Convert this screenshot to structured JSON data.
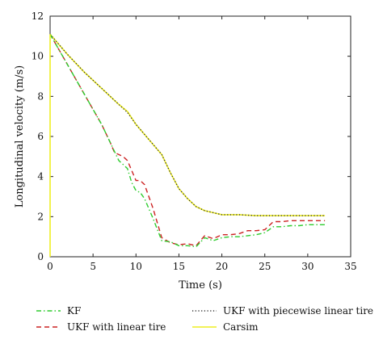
{
  "chart_data": {
    "type": "line",
    "xlabel": "Time (s)",
    "ylabel": "Longitudinal velocity (m/s)",
    "xlim": [
      0,
      35
    ],
    "ylim": [
      0,
      12
    ],
    "xticks": [
      0,
      5,
      10,
      15,
      20,
      25,
      30,
      35
    ],
    "yticks": [
      0,
      2,
      4,
      6,
      8,
      10,
      12
    ],
    "grid": false,
    "legend_placement": "below",
    "series": [
      {
        "name": "KF",
        "color": "#2ecc2e",
        "style": "dash-dot",
        "points": [
          [
            0,
            11.1
          ],
          [
            2,
            9.6
          ],
          [
            4,
            8.1
          ],
          [
            6,
            6.6
          ],
          [
            7,
            5.7
          ],
          [
            8,
            4.8
          ],
          [
            9,
            4.4
          ],
          [
            9.5,
            3.7
          ],
          [
            10,
            3.3
          ],
          [
            10.5,
            3.2
          ],
          [
            11,
            2.9
          ],
          [
            12,
            1.9
          ],
          [
            13,
            0.8
          ],
          [
            14,
            0.75
          ],
          [
            15,
            0.55
          ],
          [
            16,
            0.55
          ],
          [
            17,
            0.5
          ],
          [
            18,
            0.95
          ],
          [
            19,
            0.8
          ],
          [
            20,
            0.95
          ],
          [
            21,
            1.0
          ],
          [
            22,
            1.0
          ],
          [
            23,
            1.05
          ],
          [
            24,
            1.1
          ],
          [
            25,
            1.2
          ],
          [
            26,
            1.5
          ],
          [
            27,
            1.5
          ],
          [
            28,
            1.55
          ],
          [
            29,
            1.55
          ],
          [
            30,
            1.6
          ],
          [
            31,
            1.6
          ],
          [
            32,
            1.6
          ]
        ]
      },
      {
        "name": "UKF with linear tire",
        "color": "#cc2222",
        "style": "dashed",
        "points": [
          [
            0,
            11.1
          ],
          [
            2,
            9.6
          ],
          [
            4,
            8.1
          ],
          [
            6,
            6.6
          ],
          [
            7,
            5.7
          ],
          [
            7.5,
            5.2
          ],
          [
            8.5,
            5.0
          ],
          [
            9,
            4.8
          ],
          [
            10,
            3.8
          ],
          [
            10.5,
            3.8
          ],
          [
            11,
            3.6
          ],
          [
            12,
            2.4
          ],
          [
            13,
            0.95
          ],
          [
            14,
            0.7
          ],
          [
            15,
            0.6
          ],
          [
            16,
            0.65
          ],
          [
            17,
            0.55
          ],
          [
            18,
            1.05
          ],
          [
            19,
            0.9
          ],
          [
            20,
            1.1
          ],
          [
            21,
            1.1
          ],
          [
            22,
            1.15
          ],
          [
            23,
            1.3
          ],
          [
            24,
            1.3
          ],
          [
            25,
            1.35
          ],
          [
            26,
            1.75
          ],
          [
            27,
            1.75
          ],
          [
            28,
            1.8
          ],
          [
            29,
            1.8
          ],
          [
            30,
            1.8
          ],
          [
            31,
            1.8
          ],
          [
            32,
            1.8
          ]
        ]
      },
      {
        "name": "UKF with piecewise linear tire",
        "color": "#333333",
        "style": "dotted",
        "points": [
          [
            0,
            11.1
          ],
          [
            2,
            10.1
          ],
          [
            4,
            9.2
          ],
          [
            6,
            8.4
          ],
          [
            8,
            7.6
          ],
          [
            9,
            7.2
          ],
          [
            10,
            6.6
          ],
          [
            11,
            6.1
          ],
          [
            12,
            5.6
          ],
          [
            13,
            5.1
          ],
          [
            14,
            4.2
          ],
          [
            15,
            3.4
          ],
          [
            16,
            2.9
          ],
          [
            17,
            2.5
          ],
          [
            18,
            2.3
          ],
          [
            19,
            2.2
          ],
          [
            20,
            2.1
          ],
          [
            22,
            2.1
          ],
          [
            24,
            2.05
          ],
          [
            26,
            2.05
          ],
          [
            28,
            2.05
          ],
          [
            30,
            2.05
          ],
          [
            32,
            2.05
          ]
        ]
      },
      {
        "name": "Carsim",
        "color": "#eeee22",
        "style": "solid",
        "points": [
          [
            0,
            11.1
          ],
          [
            2,
            10.1
          ],
          [
            4,
            9.2
          ],
          [
            6,
            8.4
          ],
          [
            8,
            7.6
          ],
          [
            9,
            7.25
          ],
          [
            10,
            6.6
          ],
          [
            11,
            6.1
          ],
          [
            12,
            5.6
          ],
          [
            13,
            5.1
          ],
          [
            14,
            4.2
          ],
          [
            15,
            3.4
          ],
          [
            16,
            2.9
          ],
          [
            17,
            2.5
          ],
          [
            18,
            2.3
          ],
          [
            19,
            2.2
          ],
          [
            20,
            2.1
          ],
          [
            22,
            2.1
          ],
          [
            24,
            2.05
          ],
          [
            26,
            2.05
          ],
          [
            28,
            2.05
          ],
          [
            30,
            2.05
          ],
          [
            32,
            2.05
          ]
        ]
      }
    ]
  }
}
